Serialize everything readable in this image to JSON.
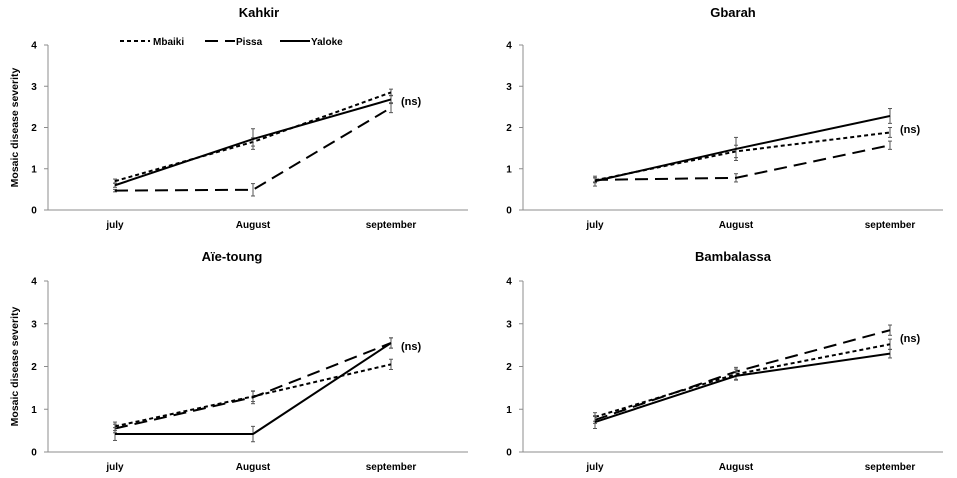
{
  "chart_data": [
    {
      "type": "line",
      "title": "Kahkir",
      "ylabel": "Mosaic disease severity",
      "xlabel": "",
      "categories": [
        "july",
        "August",
        "september"
      ],
      "ylim": [
        0,
        4
      ],
      "yticks": [
        "0",
        "1",
        "2",
        "3",
        "4"
      ],
      "annotation": "(ns)",
      "legend_position": "top",
      "series": [
        {
          "name": "Mbaiki",
          "style": "dotted",
          "values": [
            0.7,
            1.65,
            2.85
          ],
          "errors": [
            0.05,
            0.1,
            0.08
          ]
        },
        {
          "name": "Pissa",
          "style": "dashed",
          "values": [
            0.47,
            0.49,
            2.48
          ],
          "errors": [
            0.03,
            0.15,
            0.12
          ]
        },
        {
          "name": "Yaloke",
          "style": "solid",
          "values": [
            0.6,
            1.72,
            2.68
          ],
          "errors": [
            0.05,
            0.25,
            0.1
          ]
        }
      ]
    },
    {
      "type": "line",
      "title": "Gbarah",
      "ylabel": "",
      "xlabel": "",
      "categories": [
        "july",
        "August",
        "september"
      ],
      "ylim": [
        0,
        4
      ],
      "yticks": [
        "0",
        "1",
        "2",
        "3",
        "4"
      ],
      "annotation": "(ns)",
      "series": [
        {
          "name": "Mbaiki",
          "style": "dotted",
          "values": [
            0.72,
            1.42,
            1.88
          ],
          "errors": [
            0.06,
            0.15,
            0.12
          ]
        },
        {
          "name": "Pissa",
          "style": "dashed",
          "values": [
            0.73,
            0.78,
            1.57
          ],
          "errors": [
            0.05,
            0.1,
            0.1
          ]
        },
        {
          "name": "Yaloke",
          "style": "solid",
          "values": [
            0.7,
            1.48,
            2.28
          ],
          "errors": [
            0.12,
            0.28,
            0.18
          ]
        }
      ]
    },
    {
      "type": "line",
      "title": "Aïe-toung",
      "ylabel": "Mosaic disease severity",
      "xlabel": "",
      "categories": [
        "july",
        "August",
        "september"
      ],
      "ylim": [
        0,
        4
      ],
      "yticks": [
        "0",
        "1",
        "2",
        "3",
        "4"
      ],
      "annotation": "(ns)",
      "series": [
        {
          "name": "Mbaiki",
          "style": "dotted",
          "values": [
            0.6,
            1.3,
            2.05
          ],
          "errors": [
            0.1,
            0.12,
            0.12
          ]
        },
        {
          "name": "Pissa",
          "style": "dashed",
          "values": [
            0.55,
            1.28,
            2.55
          ],
          "errors": [
            0.1,
            0.15,
            0.12
          ]
        },
        {
          "name": "Yaloke",
          "style": "solid",
          "values": [
            0.42,
            0.42,
            2.55
          ],
          "errors": [
            0.15,
            0.18,
            0.12
          ]
        }
      ]
    },
    {
      "type": "line",
      "title": "Bambalassa",
      "ylabel": "",
      "xlabel": "",
      "categories": [
        "july",
        "August",
        "september"
      ],
      "ylim": [
        0,
        4
      ],
      "yticks": [
        "0",
        "1",
        "2",
        "3",
        "4"
      ],
      "annotation": "(ns)",
      "series": [
        {
          "name": "Mbaiki",
          "style": "dotted",
          "values": [
            0.82,
            1.82,
            2.52
          ],
          "errors": [
            0.1,
            0.12,
            0.12
          ]
        },
        {
          "name": "Pissa",
          "style": "dashed",
          "values": [
            0.75,
            1.88,
            2.85
          ],
          "errors": [
            0.08,
            0.1,
            0.12
          ]
        },
        {
          "name": "Yaloke",
          "style": "solid",
          "values": [
            0.7,
            1.78,
            2.3
          ],
          "errors": [
            0.15,
            0.1,
            0.1
          ]
        }
      ]
    }
  ]
}
